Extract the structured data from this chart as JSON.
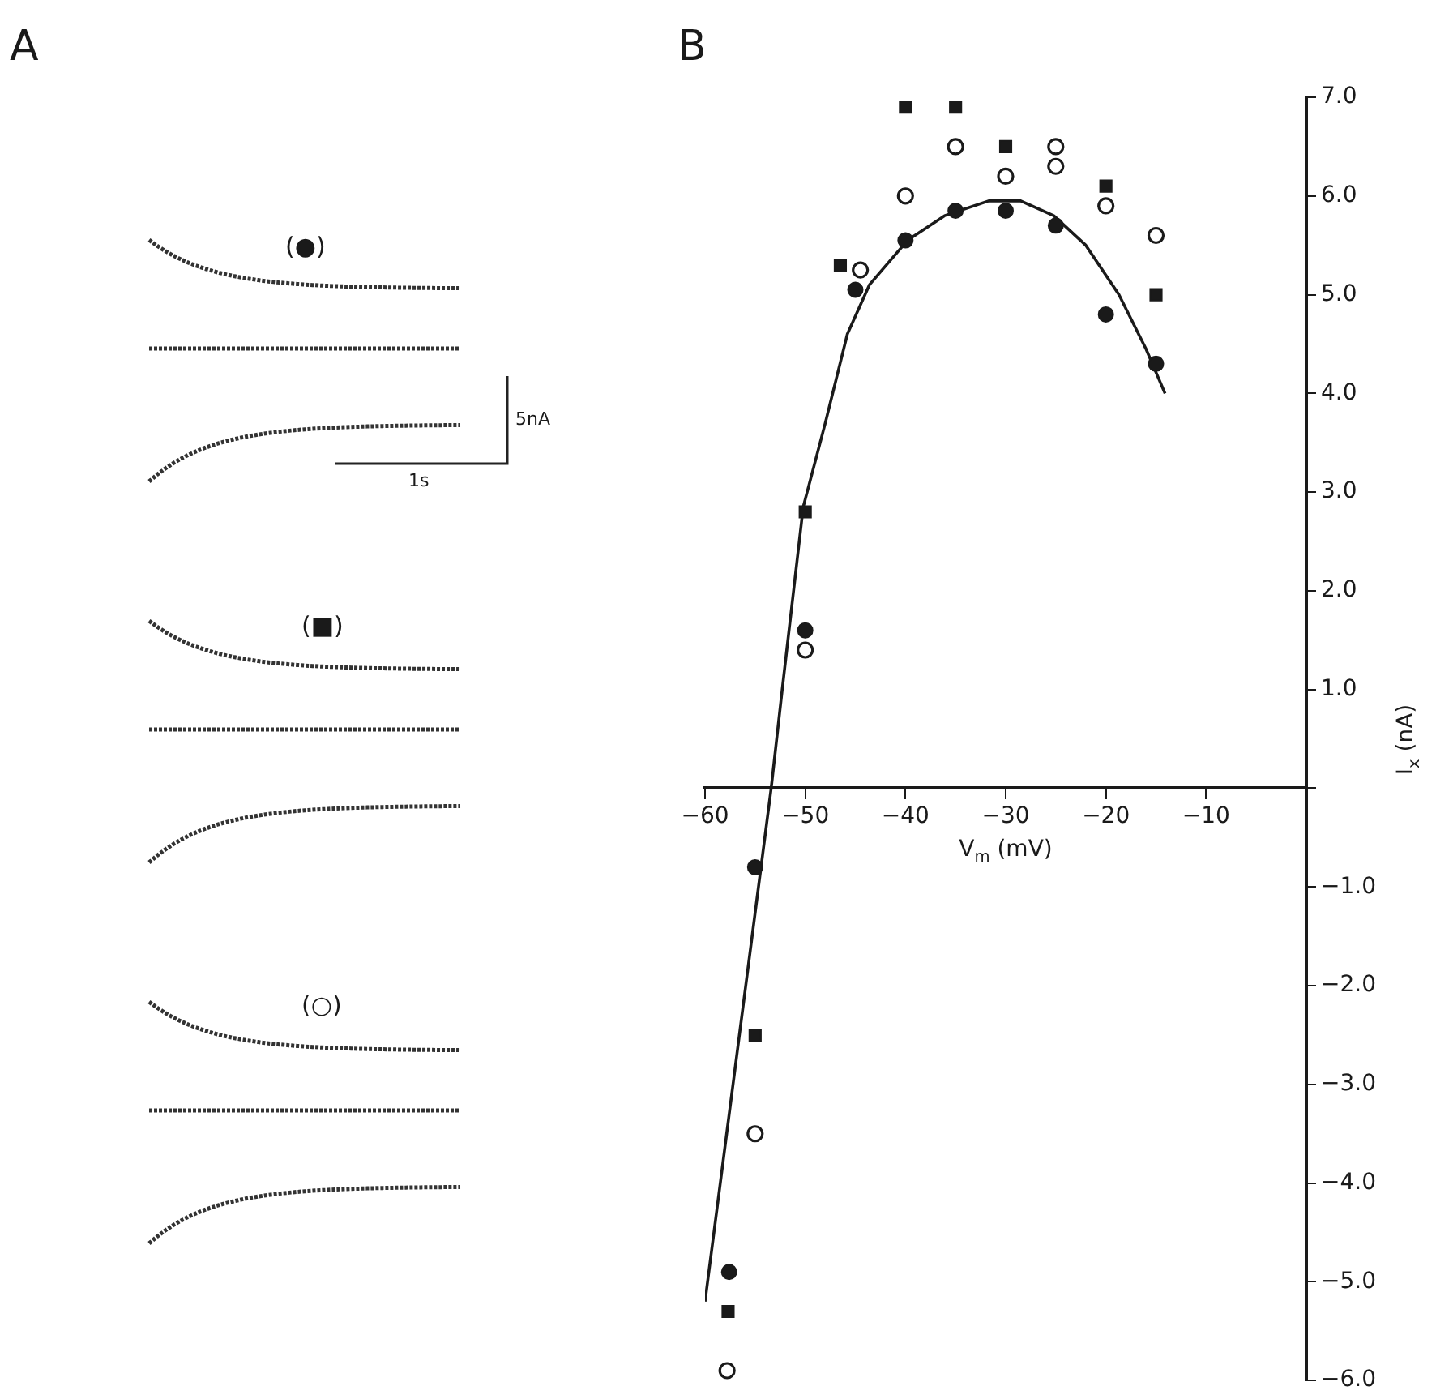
{
  "chart_data": [
    {
      "type": "other",
      "title": "A",
      "annotations": [
        "(●)",
        "(■)",
        "(○)",
        "5nA",
        "1s"
      ]
    },
    {
      "type": "scatter",
      "title": "B",
      "xlabel": "V$_{m}$ (mV)",
      "ylabel": "I$_{x}$ (nA)",
      "xlim": [
        -60,
        0
      ],
      "xticks": [
        -60,
        -50,
        -40,
        -30,
        -20,
        -10,
        {
          "value": 0,
          "label": null
        }
      ],
      "ylim": [
        -6,
        7
      ],
      "yticks": [
        {
          "value": -6,
          "label": "−6.0"
        },
        {
          "value": -5,
          "label": "−5.0"
        },
        {
          "value": -4,
          "label": "−4.0"
        },
        {
          "value": -3,
          "label": "−3.0"
        },
        {
          "value": -2,
          "label": "−2.0"
        },
        {
          "value": -1,
          "label": "−1.0"
        },
        {
          "value": 0,
          "label": null
        },
        {
          "value": 1,
          "label": "1.0"
        },
        {
          "value": 2,
          "label": "2.0"
        },
        {
          "value": 3,
          "label": "3.0"
        },
        {
          "value": 4,
          "label": "4.0"
        },
        {
          "value": 5,
          "label": "5.0"
        },
        {
          "value": 6,
          "label": "6.0"
        },
        {
          "value": 7,
          "label": "7.0"
        }
      ],
      "grid": false,
      "legend": false,
      "series": [
        {
          "type": "scatter",
          "marker": "circle",
          "color": "#1a1a1a",
          "x": [
            -57.6,
            -55,
            -50,
            -45,
            -40,
            -35,
            -30,
            -25,
            -20,
            -15
          ],
          "values": [
            -4.9,
            -0.8,
            1.6,
            5.05,
            5.55,
            5.85,
            5.85,
            5.7,
            4.8,
            4.3
          ]
        },
        {
          "type": "scatter",
          "marker": "square",
          "color": "#1a1a1a",
          "x": [
            -57.7,
            -55,
            -50,
            -46.5,
            -40,
            -35,
            -30,
            -20,
            -15
          ],
          "values": [
            -5.3,
            -2.5,
            2.8,
            5.3,
            6.9,
            6.9,
            6.5,
            6.1,
            5.0
          ]
        },
        {
          "type": "scatter",
          "marker": "open-circle",
          "color": "#1a1a1a",
          "x": [
            -57.8,
            -55,
            -50,
            -44.5,
            -40,
            -35,
            -30,
            -25,
            -25,
            -20,
            -15
          ],
          "values": [
            -5.9,
            -3.5,
            1.4,
            5.25,
            6.0,
            6.5,
            6.2,
            6.5,
            6.3,
            5.9,
            5.6
          ]
        },
        {
          "type": "line",
          "marker": "none",
          "line_style": "solid",
          "color": "#1a1a1a",
          "x": [
            -60,
            -53.4,
            -52.3,
            -50.2,
            -48,
            -46.9,
            -45.8,
            -43.6,
            -39.8,
            -36.1,
            -31.7,
            -28.5,
            -25.2,
            -22,
            -18.7,
            -16,
            -14.1
          ],
          "values": [
            -5.2,
            0,
            1.0,
            2.85,
            3.7,
            4.15,
            4.6,
            5.1,
            5.55,
            5.8,
            5.95,
            5.95,
            5.8,
            5.5,
            5.0,
            4.45,
            4.0
          ]
        }
      ]
    }
  ]
}
